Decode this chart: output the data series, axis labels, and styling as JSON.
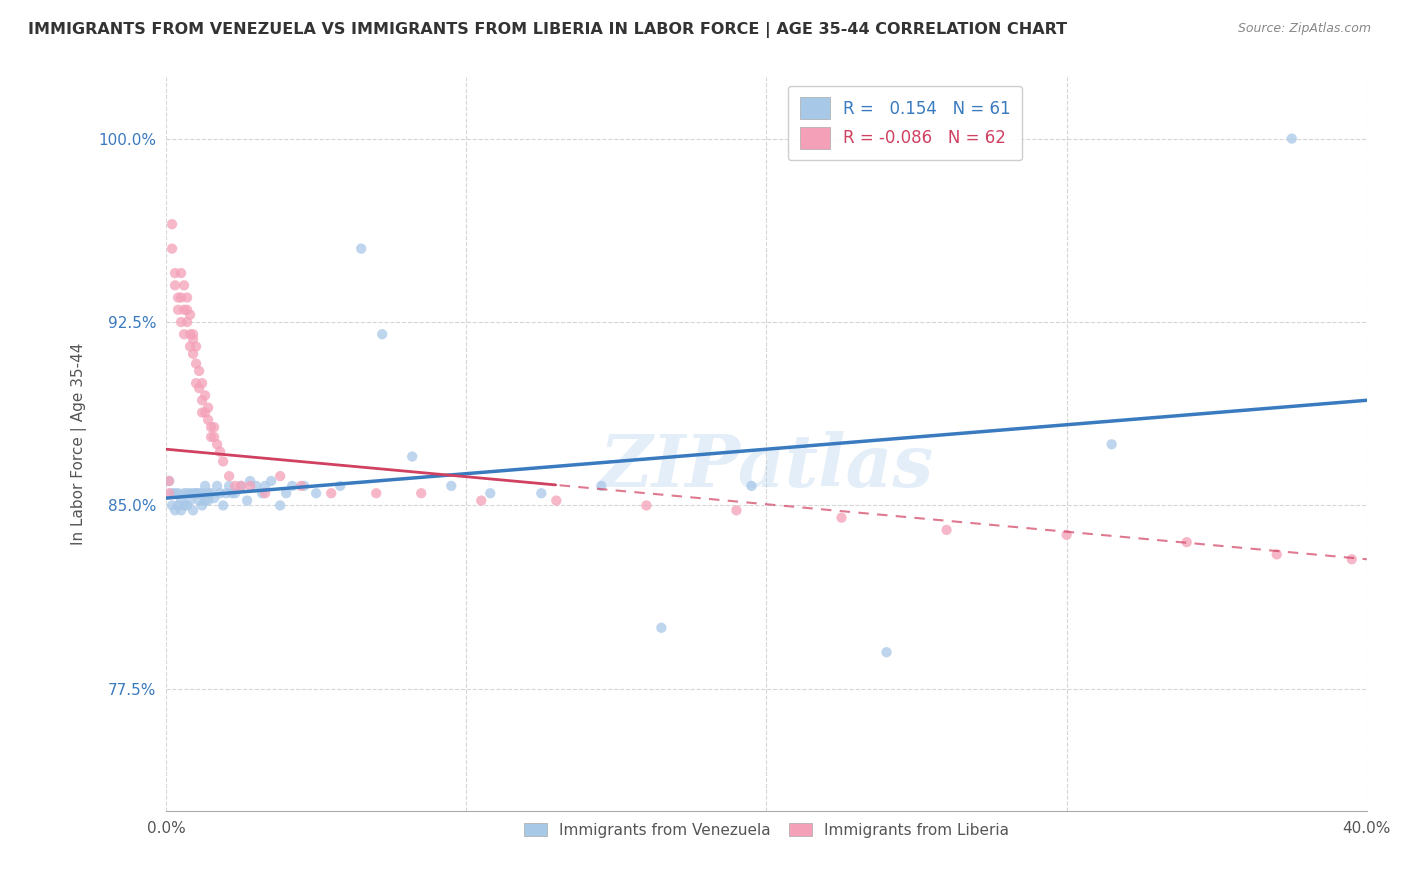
{
  "title": "IMMIGRANTS FROM VENEZUELA VS IMMIGRANTS FROM LIBERIA IN LABOR FORCE | AGE 35-44 CORRELATION CHART",
  "source": "Source: ZipAtlas.com",
  "ylabel": "In Labor Force | Age 35-44",
  "x_min": 0.0,
  "x_max": 0.4,
  "y_min": 0.725,
  "y_max": 1.025,
  "x_ticks": [
    0.0,
    0.1,
    0.2,
    0.3,
    0.4
  ],
  "x_tick_labels": [
    "0.0%",
    "",
    "",
    "",
    "40.0%"
  ],
  "y_ticks": [
    0.775,
    0.85,
    0.925,
    1.0
  ],
  "y_tick_labels": [
    "77.5%",
    "85.0%",
    "92.5%",
    "100.0%"
  ],
  "watermark": "ZIPatlas",
  "legend_R_venezuela": "0.154",
  "legend_N_venezuela": "61",
  "legend_R_liberia": "-0.086",
  "legend_N_liberia": "62",
  "color_venezuela": "#a8c8e8",
  "color_liberia": "#f4a0b8",
  "trendline_venezuela_color": "#3a7abf",
  "trendline_liberia_color": "#d04060",
  "background_color": "#ffffff",
  "scatter_alpha": 0.75,
  "scatter_size": 55,
  "venezuela_x": [
    0.001,
    0.002,
    0.002,
    0.003,
    0.003,
    0.004,
    0.004,
    0.005,
    0.005,
    0.006,
    0.006,
    0.007,
    0.007,
    0.008,
    0.008,
    0.009,
    0.009,
    0.01,
    0.01,
    0.011,
    0.011,
    0.012,
    0.012,
    0.013,
    0.013,
    0.014,
    0.014,
    0.015,
    0.016,
    0.017,
    0.018,
    0.019,
    0.02,
    0.021,
    0.022,
    0.023,
    0.025,
    0.027,
    0.028,
    0.03,
    0.032,
    0.033,
    0.035,
    0.038,
    0.04,
    0.042,
    0.046,
    0.05,
    0.058,
    0.065,
    0.072,
    0.082,
    0.095,
    0.108,
    0.125,
    0.145,
    0.165,
    0.195,
    0.24,
    0.315,
    0.375
  ],
  "venezuela_y": [
    0.86,
    0.855,
    0.85,
    0.855,
    0.848,
    0.855,
    0.85,
    0.852,
    0.848,
    0.855,
    0.85,
    0.855,
    0.85,
    0.855,
    0.852,
    0.855,
    0.848,
    0.855,
    0.855,
    0.852,
    0.855,
    0.855,
    0.85,
    0.858,
    0.852,
    0.855,
    0.852,
    0.855,
    0.853,
    0.858,
    0.855,
    0.85,
    0.855,
    0.858,
    0.855,
    0.855,
    0.858,
    0.852,
    0.86,
    0.858,
    0.855,
    0.858,
    0.86,
    0.85,
    0.855,
    0.858,
    0.858,
    0.855,
    0.858,
    0.955,
    0.92,
    0.87,
    0.858,
    0.855,
    0.855,
    0.858,
    0.8,
    0.858,
    0.79,
    0.875,
    1.0
  ],
  "liberia_x": [
    0.001,
    0.001,
    0.002,
    0.002,
    0.003,
    0.003,
    0.004,
    0.004,
    0.005,
    0.005,
    0.005,
    0.006,
    0.006,
    0.006,
    0.007,
    0.007,
    0.007,
    0.008,
    0.008,
    0.008,
    0.009,
    0.009,
    0.009,
    0.01,
    0.01,
    0.01,
    0.011,
    0.011,
    0.012,
    0.012,
    0.012,
    0.013,
    0.013,
    0.014,
    0.014,
    0.015,
    0.015,
    0.016,
    0.016,
    0.017,
    0.018,
    0.019,
    0.021,
    0.023,
    0.025,
    0.028,
    0.033,
    0.038,
    0.045,
    0.055,
    0.07,
    0.085,
    0.105,
    0.13,
    0.16,
    0.19,
    0.225,
    0.26,
    0.3,
    0.34,
    0.37,
    0.395
  ],
  "liberia_y": [
    0.855,
    0.86,
    0.955,
    0.965,
    0.94,
    0.945,
    0.93,
    0.935,
    0.945,
    0.925,
    0.935,
    0.94,
    0.93,
    0.92,
    0.935,
    0.925,
    0.93,
    0.928,
    0.92,
    0.915,
    0.92,
    0.912,
    0.918,
    0.915,
    0.908,
    0.9,
    0.905,
    0.898,
    0.9,
    0.893,
    0.888,
    0.895,
    0.888,
    0.89,
    0.885,
    0.882,
    0.878,
    0.882,
    0.878,
    0.875,
    0.872,
    0.868,
    0.862,
    0.858,
    0.858,
    0.858,
    0.855,
    0.862,
    0.858,
    0.855,
    0.855,
    0.855,
    0.852,
    0.852,
    0.85,
    0.848,
    0.845,
    0.84,
    0.838,
    0.835,
    0.83,
    0.828
  ]
}
